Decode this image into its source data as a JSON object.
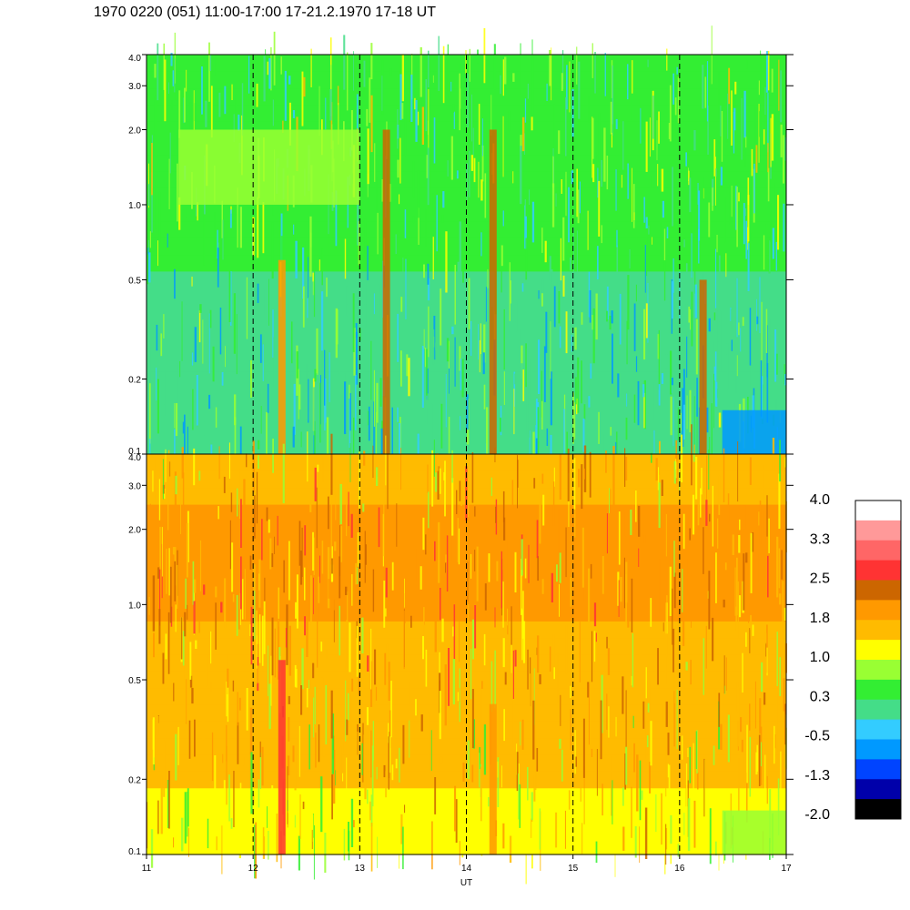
{
  "title": "1970 0220 (051) 11:00-17:00 17-21.2.1970  17-18 UT",
  "chart_data": [
    {
      "type": "heatmap",
      "panel": "top",
      "x_range": [
        11,
        17
      ],
      "y_range": [
        0.1,
        4.0
      ],
      "y_scale": "log",
      "x_ticks": [
        "11",
        "12",
        "13",
        "14",
        "15",
        "16",
        "17"
      ],
      "y_ticks": [
        {
          "v": 0.1,
          "label": "0.1"
        },
        {
          "v": 0.2,
          "label": "0.2"
        },
        {
          "v": 0.5,
          "label": "0.5"
        },
        {
          "v": 1.0,
          "label": "1.0"
        },
        {
          "v": 2.0,
          "label": "2.0"
        },
        {
          "v": 3.0,
          "label": "3.0"
        },
        {
          "v": 4.0,
          "label": "4.0"
        }
      ],
      "vertical_dashed_lines": [
        12,
        13,
        14,
        15,
        16
      ],
      "typical_level": 0.3,
      "level_profile": [
        {
          "y": 0.1,
          "level": 0.1
        },
        {
          "y": 0.5,
          "level": 0.2
        },
        {
          "y": 1.0,
          "level": 0.5
        },
        {
          "y": 2.0,
          "level": 0.6
        },
        {
          "y": 4.0,
          "level": 0.4
        }
      ],
      "features": [
        {
          "x": 12.27,
          "y_range": [
            0.1,
            0.6
          ],
          "level": 1.8,
          "note": "orange streak"
        },
        {
          "x": 13.25,
          "y_range": [
            0.1,
            2.0
          ],
          "level": 2.5
        },
        {
          "x": 14.25,
          "y_range": [
            0.1,
            2.0
          ],
          "level": 2.5
        },
        {
          "x": 16.22,
          "y_range": [
            0.1,
            0.5
          ],
          "level": 2.2
        },
        {
          "x_range": [
            11.3,
            13.0
          ],
          "y_range": [
            1.0,
            2.0
          ],
          "level": 1.0,
          "note": "yellow band"
        },
        {
          "x_range": [
            16.4,
            17.0
          ],
          "y_range": [
            0.1,
            0.15
          ],
          "level": -0.5,
          "note": "cyan patch"
        }
      ]
    },
    {
      "type": "heatmap",
      "panel": "bottom",
      "x_range": [
        11,
        17
      ],
      "y_range": [
        0.1,
        4.0
      ],
      "y_scale": "log",
      "x_ticks": [
        "11",
        "12",
        "13",
        "14",
        "15",
        "16",
        "17"
      ],
      "y_ticks": [
        {
          "v": 0.1,
          "label": "0.1"
        },
        {
          "v": 0.2,
          "label": "0.2"
        },
        {
          "v": 0.5,
          "label": "0.5"
        },
        {
          "v": 1.0,
          "label": "1.0"
        },
        {
          "v": 2.0,
          "label": "2.0"
        },
        {
          "v": 3.0,
          "label": "3.0"
        },
        {
          "v": 4.0,
          "label": "4.0"
        }
      ],
      "vertical_dashed_lines": [
        12,
        13,
        14,
        15,
        16
      ],
      "typical_level": 1.6,
      "level_profile": [
        {
          "y": 0.1,
          "level": 1.2
        },
        {
          "y": 0.3,
          "level": 1.5
        },
        {
          "y": 1.0,
          "level": 1.8
        },
        {
          "y": 2.0,
          "level": 1.9
        },
        {
          "y": 4.0,
          "level": 1.4
        }
      ],
      "features": [
        {
          "x": 12.27,
          "y_range": [
            0.1,
            0.6
          ],
          "level": 2.6,
          "note": "red streak"
        },
        {
          "x": 14.25,
          "y_range": [
            0.1,
            0.4
          ],
          "level": 1.9
        },
        {
          "x_range": [
            16.4,
            17.0
          ],
          "y_range": [
            0.1,
            0.15
          ],
          "level": 0.8,
          "note": "green patch"
        }
      ],
      "xlabel": "UT"
    }
  ],
  "colorbar": {
    "labels": [
      "4.0",
      "3.3",
      "2.5",
      "1.8",
      "1.0",
      "0.3",
      "-0.5",
      "-1.3",
      "-2.0"
    ],
    "range": [
      -2.0,
      4.0
    ],
    "colors_top_to_bottom": [
      "#ffffff",
      "#ff9999",
      "#ff6666",
      "#ff3333",
      "#cc6600",
      "#ff9900",
      "#ffbb00",
      "#ffff00",
      "#99ff33",
      "#33ee33",
      "#44dd88",
      "#33ccff",
      "#0099ff",
      "#0044ff",
      "#0000aa",
      "#000000"
    ]
  }
}
